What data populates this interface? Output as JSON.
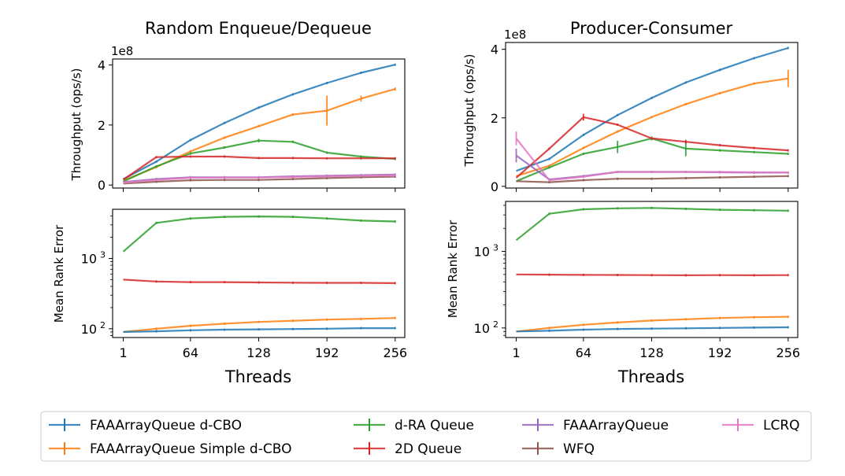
{
  "figure": {
    "legend": [
      {
        "name": "FAAArrayQueue d-CBO",
        "color": "#1f77b4"
      },
      {
        "name": "FAAArrayQueue Simple d-CBO",
        "color": "#ff7f0e"
      },
      {
        "name": "d-RA Queue",
        "color": "#2ca02c"
      },
      {
        "name": "2D Queue",
        "color": "#d62728"
      },
      {
        "name": "FAAArrayQueue",
        "color": "#9467bd"
      },
      {
        "name": "WFQ",
        "color": "#8c564b"
      },
      {
        "name": "LCRQ",
        "color": "#e377c2"
      }
    ]
  },
  "chart_data": [
    {
      "id": "tl",
      "type": "line",
      "title": "Random Enqueue/Dequeue",
      "xlabel": "",
      "ylabel": "Throughput (ops/s)",
      "scale_label": "1e8",
      "yscale": "linear",
      "xlim": [
        -9,
        265
      ],
      "ylim": [
        -0.1,
        4.2
      ],
      "xticks": [
        1,
        64,
        128,
        192,
        256
      ],
      "xtick_labels": [
        "1",
        "64",
        "128",
        "192",
        "256"
      ],
      "yticks": [
        0,
        2,
        4
      ],
      "ytick_labels": [
        "0",
        "2",
        "4"
      ],
      "series": [
        {
          "name": "FAAArrayQueue d-CBO",
          "color": "#1f77b4",
          "x": [
            1,
            32,
            64,
            96,
            128,
            160,
            192,
            224,
            256
          ],
          "y": [
            0.2,
            0.78,
            1.5,
            2.07,
            2.58,
            3.02,
            3.4,
            3.74,
            4.01
          ]
        },
        {
          "name": "FAAArrayQueue Simple d-CBO",
          "color": "#ff7f0e",
          "x": [
            1,
            32,
            64,
            96,
            128,
            160,
            192,
            224,
            256
          ],
          "y": [
            0.15,
            0.6,
            1.12,
            1.58,
            1.96,
            2.35,
            2.48,
            2.88,
            3.2
          ],
          "err": [
            0,
            0.02,
            0.02,
            0.02,
            0.02,
            0.02,
            0.5,
            0.1,
            0.05
          ]
        },
        {
          "name": "d-RA Queue",
          "color": "#2ca02c",
          "x": [
            1,
            32,
            64,
            96,
            128,
            160,
            192,
            224,
            256
          ],
          "y": [
            0.12,
            0.62,
            1.05,
            1.25,
            1.48,
            1.44,
            1.08,
            0.95,
            0.87
          ],
          "err": [
            0,
            0.03,
            0.03,
            0.03,
            0.06,
            0.03,
            0.02,
            0.02,
            0.02
          ]
        },
        {
          "name": "2D Queue",
          "color": "#d62728",
          "x": [
            1,
            32,
            64,
            96,
            128,
            160,
            192,
            224,
            256
          ],
          "y": [
            0.18,
            0.93,
            0.95,
            0.95,
            0.9,
            0.9,
            0.89,
            0.89,
            0.89
          ]
        },
        {
          "name": "FAAArrayQueue",
          "color": "#9467bd",
          "x": [
            1,
            32,
            64,
            96,
            128,
            160,
            192,
            224,
            256
          ],
          "y": [
            0.1,
            0.2,
            0.26,
            0.26,
            0.26,
            0.29,
            0.31,
            0.33,
            0.35
          ]
        },
        {
          "name": "WFQ",
          "color": "#8c564b",
          "x": [
            1,
            32,
            64,
            96,
            128,
            160,
            192,
            224,
            256
          ],
          "y": [
            0.05,
            0.11,
            0.16,
            0.17,
            0.17,
            0.2,
            0.23,
            0.26,
            0.28
          ]
        },
        {
          "name": "LCRQ",
          "color": "#e377c2",
          "x": [
            1,
            32,
            64,
            96,
            128,
            160,
            192,
            224,
            256
          ],
          "y": [
            0.08,
            0.17,
            0.24,
            0.25,
            0.25,
            0.27,
            0.29,
            0.31,
            0.32
          ]
        }
      ]
    },
    {
      "id": "tr",
      "type": "line",
      "title": "Producer-Consumer",
      "xlabel": "",
      "ylabel": "Throughput (ops/s)",
      "scale_label": "1e8",
      "yscale": "linear",
      "xlim": [
        -9,
        265
      ],
      "ylim": [
        -0.05,
        4.2
      ],
      "xticks": [
        1,
        64,
        128,
        192,
        256
      ],
      "xtick_labels": [
        "1",
        "64",
        "128",
        "192",
        "256"
      ],
      "yticks": [
        0,
        2,
        4
      ],
      "ytick_labels": [
        "0",
        "2",
        "4"
      ],
      "series": [
        {
          "name": "FAAArrayQueue d-CBO",
          "color": "#1f77b4",
          "x": [
            1,
            32,
            64,
            96,
            128,
            160,
            192,
            224,
            256
          ],
          "y": [
            0.45,
            0.8,
            1.5,
            2.08,
            2.58,
            3.03,
            3.4,
            3.74,
            4.04
          ]
        },
        {
          "name": "FAAArrayQueue Simple d-CBO",
          "color": "#ff7f0e",
          "x": [
            1,
            32,
            64,
            96,
            128,
            160,
            192,
            224,
            256
          ],
          "y": [
            0.3,
            0.6,
            1.12,
            1.6,
            2.02,
            2.4,
            2.72,
            3.0,
            3.15
          ],
          "err": [
            0,
            0.02,
            0.02,
            0.02,
            0.02,
            0.02,
            0.02,
            0.02,
            0.25
          ]
        },
        {
          "name": "d-RA Queue",
          "color": "#2ca02c",
          "x": [
            1,
            32,
            64,
            96,
            128,
            160,
            192,
            224,
            256
          ],
          "y": [
            0.15,
            0.55,
            0.95,
            1.15,
            1.4,
            1.1,
            1.05,
            1.0,
            0.95
          ],
          "err": [
            0,
            0.03,
            0.03,
            0.18,
            0.06,
            0.22,
            0.03,
            0.03,
            0.03
          ]
        },
        {
          "name": "2D Queue",
          "color": "#d62728",
          "x": [
            1,
            32,
            64,
            96,
            128,
            160,
            192,
            224,
            256
          ],
          "y": [
            0.25,
            1.1,
            2.02,
            1.8,
            1.4,
            1.3,
            1.2,
            1.12,
            1.05
          ],
          "err": [
            0,
            0.03,
            0.1,
            0.03,
            0.03,
            0.06,
            0.03,
            0.03,
            0.03
          ]
        },
        {
          "name": "FAAArrayQueue",
          "color": "#9467bd",
          "x": [
            1,
            32,
            64,
            96,
            128,
            160,
            192,
            224,
            256
          ],
          "y": [
            0.9,
            0.2,
            0.3,
            0.42,
            0.42,
            0.42,
            0.41,
            0.4,
            0.4
          ],
          "err": [
            0.2,
            0.02,
            0.02,
            0.02,
            0.02,
            0.02,
            0.02,
            0.02,
            0.02
          ]
        },
        {
          "name": "WFQ",
          "color": "#8c564b",
          "x": [
            1,
            32,
            64,
            96,
            128,
            160,
            192,
            224,
            256
          ],
          "y": [
            0.15,
            0.12,
            0.18,
            0.22,
            0.22,
            0.24,
            0.26,
            0.28,
            0.3
          ]
        },
        {
          "name": "LCRQ",
          "color": "#e377c2",
          "x": [
            1,
            32,
            64,
            96,
            128,
            160,
            192,
            224,
            256
          ],
          "y": [
            1.4,
            0.18,
            0.28,
            0.42,
            0.42,
            0.42,
            0.42,
            0.41,
            0.4
          ],
          "err": [
            0.2,
            0.02,
            0.02,
            0.02,
            0.02,
            0.02,
            0.02,
            0.02,
            0.02
          ]
        }
      ]
    },
    {
      "id": "bl",
      "type": "line",
      "title": "",
      "xlabel": "Threads",
      "ylabel": "Mean Rank Error",
      "scale_label": "",
      "yscale": "log",
      "xlim": [
        -9,
        265
      ],
      "ylim": [
        75,
        5000
      ],
      "xticks": [
        1,
        64,
        128,
        192,
        256
      ],
      "xtick_labels": [
        "1",
        "64",
        "128",
        "192",
        "256"
      ],
      "yticks": [
        100,
        1000
      ],
      "ytick_labels": [
        "10^2",
        "10^3"
      ],
      "series": [
        {
          "name": "d-RA Queue",
          "color": "#2ca02c",
          "x": [
            1,
            32,
            64,
            96,
            128,
            160,
            192,
            224,
            256
          ],
          "y": [
            1250,
            3200,
            3700,
            3900,
            3950,
            3900,
            3700,
            3450,
            3350
          ],
          "err": [
            0,
            0,
            0,
            0,
            0,
            0,
            0,
            0,
            0
          ]
        },
        {
          "name": "2D Queue",
          "color": "#d62728",
          "x": [
            1,
            32,
            64,
            96,
            128,
            160,
            192,
            224,
            256
          ],
          "y": [
            500,
            470,
            460,
            460,
            455,
            452,
            450,
            450,
            445
          ]
        },
        {
          "name": "FAAArrayQueue Simple d-CBO",
          "color": "#ff7f0e",
          "x": [
            1,
            32,
            64,
            96,
            128,
            160,
            192,
            224,
            256
          ],
          "y": [
            90,
            100,
            110,
            118,
            125,
            130,
            135,
            138,
            142
          ],
          "err": [
            0,
            0,
            0,
            0,
            0,
            0,
            3,
            4,
            5
          ]
        },
        {
          "name": "FAAArrayQueue d-CBO",
          "color": "#1f77b4",
          "x": [
            1,
            32,
            64,
            96,
            128,
            160,
            192,
            224,
            256
          ],
          "y": [
            90,
            92,
            95,
            97,
            98,
            99,
            100,
            102,
            102
          ]
        }
      ]
    },
    {
      "id": "br",
      "type": "line",
      "title": "",
      "xlabel": "Threads",
      "ylabel": "Mean Rank Error",
      "scale_label": "",
      "yscale": "log",
      "xlim": [
        -9,
        265
      ],
      "ylim": [
        75,
        4500
      ],
      "xticks": [
        1,
        64,
        128,
        192,
        256
      ],
      "xtick_labels": [
        "1",
        "64",
        "128",
        "192",
        "256"
      ],
      "yticks": [
        100,
        1000
      ],
      "ytick_labels": [
        "10^2",
        "10^3"
      ],
      "series": [
        {
          "name": "d-RA Queue",
          "color": "#2ca02c",
          "x": [
            1,
            32,
            64,
            96,
            128,
            160,
            192,
            224,
            256
          ],
          "y": [
            1400,
            3100,
            3550,
            3650,
            3700,
            3600,
            3500,
            3450,
            3400
          ]
        },
        {
          "name": "2D Queue",
          "color": "#d62728",
          "x": [
            1,
            32,
            64,
            96,
            128,
            160,
            192,
            224,
            256
          ],
          "y": [
            500,
            497,
            494,
            492,
            490,
            488,
            490,
            488,
            490
          ]
        },
        {
          "name": "FAAArrayQueue Simple d-CBO",
          "color": "#ff7f0e",
          "x": [
            1,
            32,
            64,
            96,
            128,
            160,
            192,
            224,
            256
          ],
          "y": [
            90,
            100,
            110,
            118,
            125,
            130,
            135,
            138,
            140
          ],
          "err": [
            0,
            0,
            0,
            0,
            0,
            0,
            3,
            4,
            5
          ]
        },
        {
          "name": "FAAArrayQueue d-CBO",
          "color": "#1f77b4",
          "x": [
            1,
            32,
            64,
            96,
            128,
            160,
            192,
            224,
            256
          ],
          "y": [
            90,
            92,
            95,
            97,
            98,
            99,
            100,
            101,
            102
          ]
        }
      ]
    }
  ]
}
